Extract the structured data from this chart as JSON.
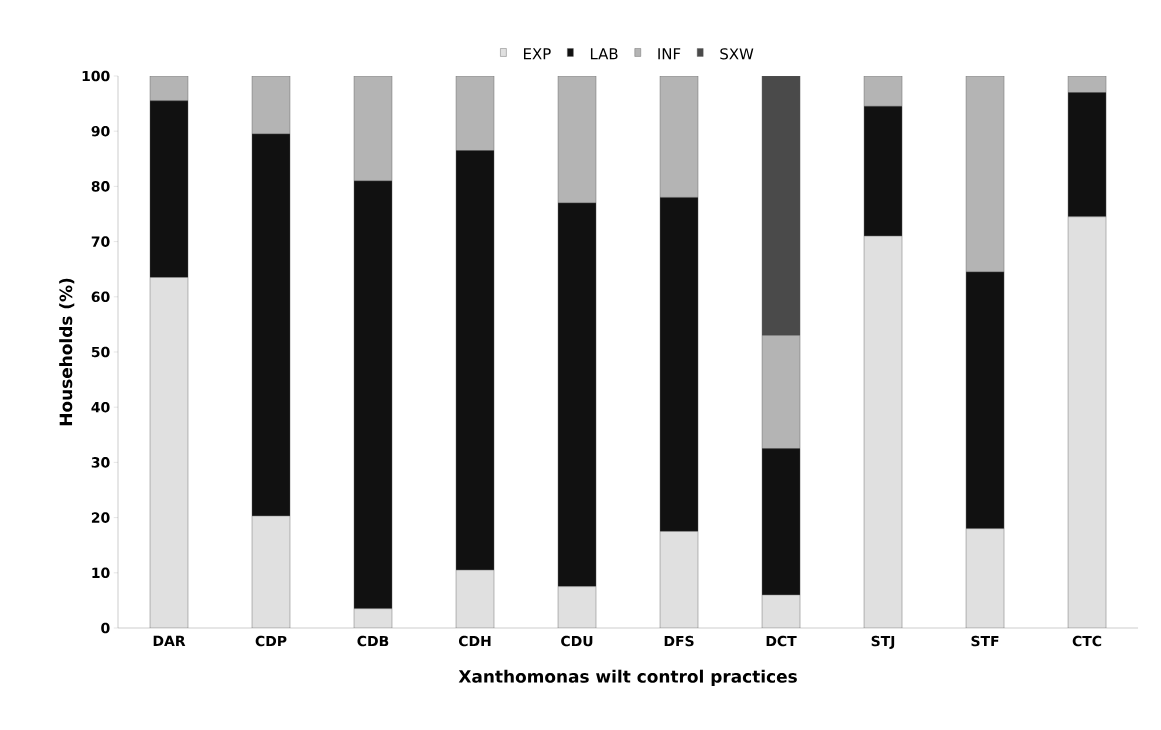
{
  "chart_data": {
    "type": "bar",
    "stacked": true,
    "xlabel": "Xanthomonas wilt control practices",
    "ylabel": "Households (%)",
    "categories": [
      "DAR",
      "CDP",
      "CDB",
      "CDH",
      "CDU",
      "DFS",
      "DCT",
      "STJ",
      "STF",
      "CTC"
    ],
    "series": [
      {
        "name": "EXP",
        "color": "#e0e0e0",
        "values": [
          63.5,
          20.3,
          3.5,
          10.5,
          7.5,
          17.5,
          6,
          71,
          18,
          74.5
        ]
      },
      {
        "name": "LAB",
        "color": "#111111",
        "values": [
          32,
          69.2,
          77.5,
          76,
          69.5,
          60.5,
          26.5,
          23.5,
          46.5,
          22.5
        ]
      },
      {
        "name": "INF",
        "color": "#b4b4b4",
        "values": [
          4.5,
          10.5,
          19,
          13.5,
          23,
          22,
          20.5,
          5.5,
          35.5,
          3
        ]
      },
      {
        "name": "SXW",
        "color": "#4a4a4a",
        "values": [
          0,
          0,
          0,
          0,
          0,
          0,
          47,
          0,
          0,
          0
        ]
      }
    ],
    "ylim": [
      0,
      100
    ],
    "yticks": [
      0,
      10,
      20,
      30,
      40,
      50,
      60,
      70,
      80,
      90,
      100
    ],
    "grid": false,
    "legend": "top"
  }
}
